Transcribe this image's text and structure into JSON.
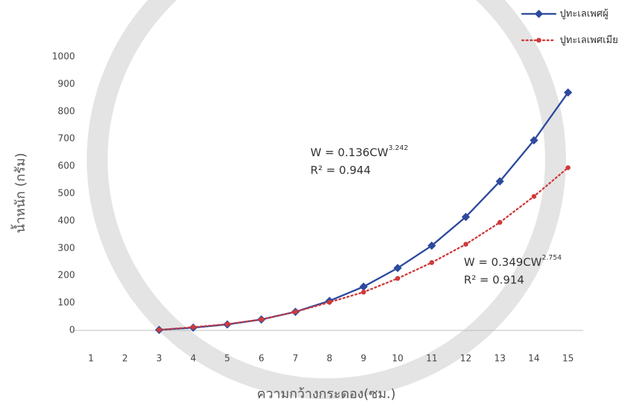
{
  "chart_data": {
    "type": "line",
    "x": [
      3,
      4,
      5,
      6,
      7,
      8,
      9,
      10,
      11,
      12,
      13,
      14,
      15
    ],
    "xlim": [
      1,
      15
    ],
    "xticks": [
      1,
      2,
      3,
      4,
      5,
      6,
      7,
      8,
      9,
      10,
      11,
      12,
      13,
      14,
      15
    ],
    "ylim": [
      0,
      1000
    ],
    "yticks": [
      0,
      100,
      200,
      300,
      400,
      500,
      600,
      700,
      800,
      900,
      1000
    ],
    "xlabel": "ความกว้างกระดอง(ซม.)",
    "ylabel": "น้ำหนัก (กรัม)",
    "legend": "top-right",
    "series": [
      {
        "name": "ปูทะเลเพศผู้",
        "color": "#2e4a9e",
        "marker": "diamond",
        "style": "solid",
        "values": [
          2,
          10,
          22,
          40,
          68,
          108,
          160,
          228,
          310,
          415,
          545,
          695,
          870
        ]
      },
      {
        "name": "ปูทะเลเพศเมีย",
        "color": "#d03a3a",
        "marker": "circle",
        "style": "dotted",
        "values": [
          2,
          12,
          23,
          40,
          68,
          103,
          140,
          190,
          248,
          315,
          395,
          490,
          595
        ]
      }
    ],
    "annotations": [
      {
        "equation": "W = 0.136CW",
        "exponent": "3.242",
        "r2": "R² = 0.944"
      },
      {
        "equation": "W = 0.349CW",
        "exponent": "2.754",
        "r2": "R² = 0.914"
      }
    ]
  }
}
